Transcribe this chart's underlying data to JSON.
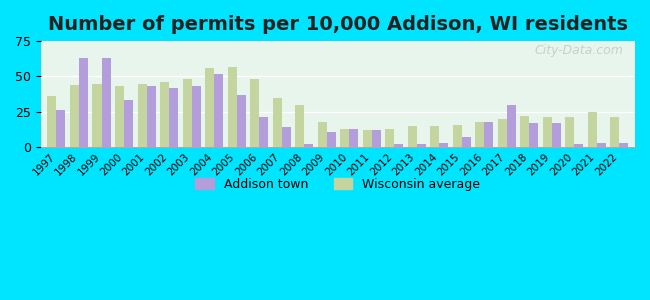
{
  "title": "Number of permits per 10,000 Addison, WI residents",
  "years": [
    1997,
    1998,
    1999,
    2000,
    2001,
    2002,
    2003,
    2004,
    2005,
    2006,
    2007,
    2008,
    2009,
    2010,
    2011,
    2012,
    2013,
    2014,
    2015,
    2016,
    2017,
    2018,
    2019,
    2020,
    2021,
    2022
  ],
  "addison": [
    26,
    63,
    63,
    33,
    43,
    42,
    43,
    52,
    37,
    21,
    14,
    2,
    11,
    13,
    12,
    2,
    2,
    3,
    7,
    18,
    30,
    17,
    17,
    2,
    3,
    3
  ],
  "wisconsin": [
    36,
    44,
    45,
    43,
    45,
    46,
    48,
    56,
    57,
    48,
    35,
    30,
    18,
    13,
    12,
    13,
    15,
    15,
    16,
    18,
    20,
    22,
    21,
    21,
    25,
    21
  ],
  "addison_color": "#b39ddb",
  "wisconsin_color": "#c5d5a0",
  "background_outer": "#00e5ff",
  "background_inner_top": "#e8f5e9",
  "background_inner_bottom": "#e0f7fa",
  "ylim": [
    0,
    75
  ],
  "yticks": [
    0,
    25,
    50,
    75
  ],
  "title_fontsize": 14,
  "bar_width": 0.4,
  "watermark": "City-Data.com",
  "legend_addison": "Addison town",
  "legend_wisconsin": "Wisconsin average"
}
